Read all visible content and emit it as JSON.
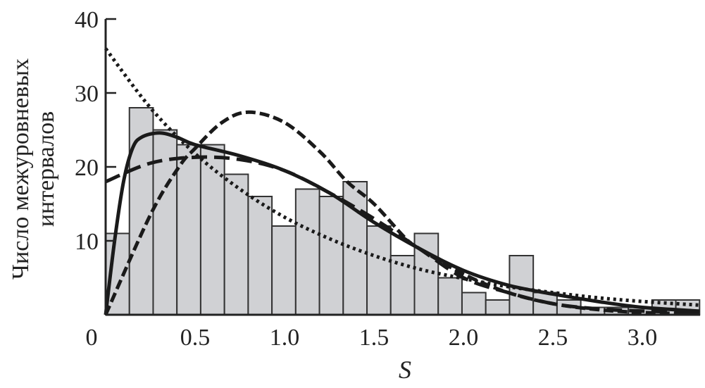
{
  "chart_data": {
    "type": "bar",
    "title": "",
    "xlabel": "S",
    "ylabel_lines": [
      "Число межуровневых",
      "интервалов"
    ],
    "xlim": [
      0,
      3.32
    ],
    "ylim": [
      0,
      40
    ],
    "x_ticks": [
      "0",
      "0.5",
      "1.0",
      "1.5",
      "2.0",
      "2.5",
      "3.0"
    ],
    "x_tick_values": [
      0,
      0.5,
      1.0,
      1.5,
      2.0,
      2.5,
      3.0
    ],
    "y_ticks": [
      "10",
      "20",
      "30",
      "40"
    ],
    "y_tick_values": [
      10,
      20,
      30,
      40
    ],
    "grid": false,
    "bar_color": "#d0d1d4",
    "bar_edge_color": "#333333",
    "histogram": {
      "bin_start": 0,
      "bin_width": 0.1328,
      "counts": [
        11,
        28,
        25,
        23,
        23,
        19,
        16,
        12,
        17,
        16,
        18,
        12,
        8,
        11,
        5,
        3,
        2,
        8,
        3,
        2,
        1,
        1,
        1,
        2,
        2
      ]
    },
    "series": [
      {
        "style": "solid",
        "x": [
          0,
          0.05,
          0.1,
          0.15,
          0.2,
          0.3,
          0.4,
          0.5,
          0.75,
          1.0,
          1.25,
          1.5,
          1.75,
          2.0,
          2.25,
          2.5,
          2.75,
          3.0,
          3.32
        ],
        "y": [
          0,
          10,
          18,
          22.5,
          24,
          24.6,
          24,
          23,
          21.5,
          19.5,
          16.5,
          12.5,
          9,
          6,
          4,
          2.8,
          1.8,
          1.0,
          0.5
        ]
      },
      {
        "style": "long-dash",
        "x": [
          0,
          0.25,
          0.5,
          0.75,
          1.0,
          1.25,
          1.5,
          1.75,
          2.0,
          2.25,
          2.5,
          2.75,
          3.0,
          3.32
        ],
        "y": [
          18,
          20.5,
          21.3,
          21,
          19.5,
          16.5,
          13,
          9,
          5,
          3,
          1.5,
          0.8,
          0.5,
          0.3
        ]
      },
      {
        "style": "dash-dot",
        "x": [
          0,
          0.25,
          0.41,
          0.5,
          0.65,
          0.8,
          1.0,
          1.2,
          1.35,
          1.5,
          1.67,
          1.75,
          2.0,
          2.25,
          2.5,
          2.75,
          3.0,
          3.32
        ],
        "y": [
          0,
          13.5,
          20,
          22.5,
          26,
          27.4,
          26,
          22,
          18,
          15,
          10.5,
          9,
          5.5,
          3,
          1.5,
          0.7,
          0.3,
          0.1
        ]
      },
      {
        "style": "dotted",
        "x": [
          0,
          0.25,
          0.5,
          0.75,
          1.0,
          1.25,
          1.5,
          1.75,
          2.0,
          2.25,
          2.5,
          2.75,
          3.0,
          3.32
        ],
        "y": [
          36,
          28,
          21.8,
          17,
          13.2,
          10.3,
          8,
          6.2,
          4.9,
          3.8,
          3.0,
          2.3,
          1.8,
          1.3
        ]
      }
    ]
  }
}
